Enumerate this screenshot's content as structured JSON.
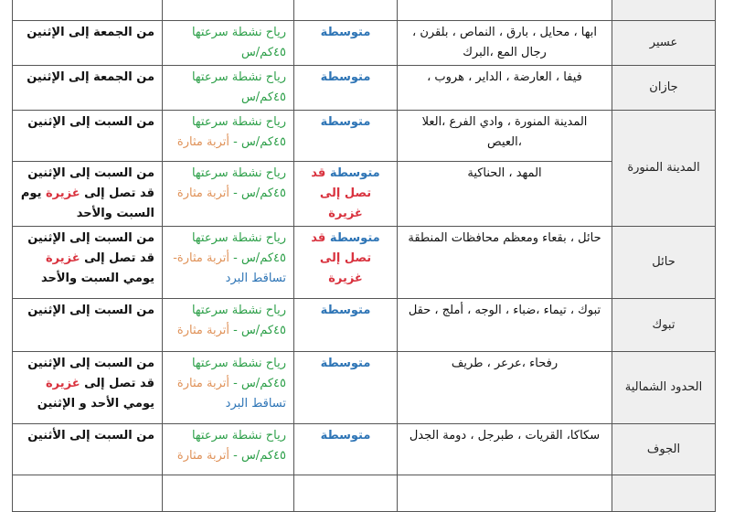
{
  "colors": {
    "green": "#2ea04a",
    "orange": "#e0935a",
    "blue": "#2e75b6",
    "red": "#d9333f",
    "black": "#111111"
  },
  "rows": [
    {
      "region": "",
      "cities": [],
      "intensity": [],
      "phen": [],
      "dur": [
        {
          "t": "والأحد",
          "c": "black"
        }
      ]
    },
    {
      "region": "عسير",
      "cities": [
        {
          "t": "ابها ، محايل ، بارق ، النماص ، بلقرن ، رجال المع ،البرك",
          "c": "black"
        }
      ],
      "intensity": [
        {
          "t": "متوسطة",
          "c": "blue"
        }
      ],
      "phen": [
        {
          "t": "رياح نشطة سرعتها ٤٥كم/س",
          "c": "green"
        }
      ],
      "dur": [
        {
          "t": "من  الجمعة إلى الإثنين",
          "c": "black"
        }
      ]
    },
    {
      "region": "جازان",
      "cities": [
        {
          "t": "فيفا ، العارضة ، الداير ، هروب ،",
          "c": "black"
        }
      ],
      "intensity": [
        {
          "t": "متوسطة",
          "c": "blue"
        }
      ],
      "phen": [
        {
          "t": "رياح نشطة سرعتها ٤٥كم/س",
          "c": "green"
        }
      ],
      "dur": [
        {
          "t": "من  الجمعة إلى الإثنين",
          "c": "black"
        }
      ]
    },
    {
      "region": "المدينة المنورة",
      "rowspan": 2,
      "cities": [
        {
          "t": "المدينة المنورة ، وادي الفرع ،العلا ،العيص",
          "c": "black"
        }
      ],
      "intensity": [
        {
          "t": "متوسطة",
          "c": "blue"
        }
      ],
      "phen": [
        {
          "t": "رياح نشطة سرعتها ٤٥كم/س - ",
          "c": "green"
        },
        {
          "t": "أتربة مثارة",
          "c": "orange"
        }
      ],
      "dur": [
        {
          "t": "من السبت إلى الإثنين",
          "c": "black"
        }
      ]
    },
    {
      "cities": [
        {
          "t": "المهد ، الحناكية",
          "c": "black"
        }
      ],
      "intensity": [
        {
          "t": "متوسطة ",
          "c": "blue"
        },
        {
          "t": "قد تصل إلى غزيرة",
          "c": "red"
        }
      ],
      "phen": [
        {
          "t": "رياح نشطة سرعتها ٤٥كم/س - ",
          "c": "green"
        },
        {
          "t": "أتربة مثارة",
          "c": "orange"
        }
      ],
      "dur": [
        {
          "t": "من  السبت  إلى الإثنين قد تصل إلى ",
          "c": "black"
        },
        {
          "t": "غزيرة",
          "c": "red"
        },
        {
          "t": " يوم السبت والأحد",
          "c": "black"
        }
      ]
    },
    {
      "region": "حائل",
      "cities": [
        {
          "t": "حائل ، بقعاء  ومعظم محافظات المنطقة",
          "c": "black"
        }
      ],
      "intensity": [
        {
          "t": "متوسطة ",
          "c": "blue"
        },
        {
          "t": "قد تصل إلى غزيرة",
          "c": "red"
        }
      ],
      "phen": [
        {
          "t": "رياح نشطة سرعتها ٤٥كم/س - ",
          "c": "green"
        },
        {
          "t": "أتربة مثارة- ",
          "c": "orange"
        },
        {
          "t": "تساقط البرد",
          "c": "blue"
        }
      ],
      "dur": [
        {
          "t": "من  السبت  إلى الإثنين قد تصل إلى ",
          "c": "black"
        },
        {
          "t": "غزيرة",
          "c": "red"
        },
        {
          "t": " يومي السبت والأحد",
          "c": "black"
        }
      ]
    },
    {
      "region": "تبوك",
      "cities": [
        {
          "t": "تبوك ، تيماء ،ضباء ، الوجه ، أملج ، حقل",
          "c": "black"
        }
      ],
      "intensity": [
        {
          "t": "متوسطة",
          "c": "blue"
        }
      ],
      "phen": [
        {
          "t": "رياح نشطة سرعتها ٤٥كم/س - ",
          "c": "green"
        },
        {
          "t": "أتربة مثارة",
          "c": "orange"
        }
      ],
      "dur": [
        {
          "t": "من السبت إلى الإثنين",
          "c": "black"
        }
      ]
    },
    {
      "region": "الحدود الشمالية",
      "cities": [
        {
          "t": "رفحاء  ،عرعر ، طريف",
          "c": "black"
        }
      ],
      "intensity": [
        {
          "t": "متوسطة",
          "c": "blue"
        }
      ],
      "phen": [
        {
          "t": "رياح نشطة سرعتها ٤٥كم/س - ",
          "c": "green"
        },
        {
          "t": "أتربة مثارة ",
          "c": "orange"
        },
        {
          "t": "تساقط البرد",
          "c": "blue"
        }
      ],
      "dur": [
        {
          "t": "من  السبت  إلى الإثنين قد تصل إلى ",
          "c": "black"
        },
        {
          "t": "غزيرة",
          "c": "red"
        },
        {
          "t": " يومي الأحد و الإثنين",
          "c": "black"
        }
      ]
    },
    {
      "region": "الجوف",
      "cities": [
        {
          "t": "سكاكا، القريات ، طبرجل ، دومة الجدل",
          "c": "black"
        }
      ],
      "intensity": [
        {
          "t": "متوسطة",
          "c": "blue"
        }
      ],
      "phen": [
        {
          "t": "رياح نشطة سرعتها ٤٥كم/س - ",
          "c": "green"
        },
        {
          "t": "أتربة مثارة",
          "c": "orange"
        }
      ],
      "dur": [
        {
          "t": "من السبت إلى الأثنين",
          "c": "black"
        }
      ]
    },
    {
      "region": "",
      "cities": [],
      "intensity": [],
      "phen": [],
      "dur": []
    }
  ]
}
